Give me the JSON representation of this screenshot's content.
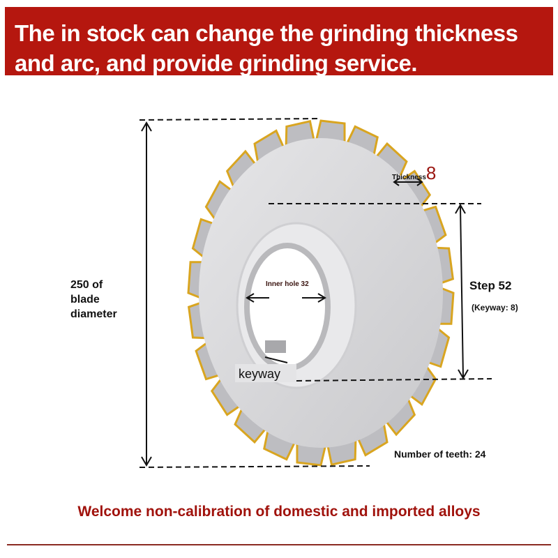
{
  "header": {
    "title": "The in stock can change the grinding thickness and arc, and provide grinding service."
  },
  "diagram": {
    "blade_diameter": "250 of blade diameter",
    "thickness_label": "Thickness",
    "thickness_value": "8",
    "inner_hole": "Inner hole 32",
    "step": "Step 52",
    "keyway_note": "(Keyway: 8)",
    "keyway": "keyway",
    "teeth": "Number of teeth: 24",
    "teeth_count": 24,
    "colors": {
      "accent": "#b5170f",
      "brazed_tip": "#d9a520",
      "steel": "#d8d8da"
    }
  },
  "footer": {
    "text": "Welcome non-calibration of domestic and imported alloys"
  }
}
